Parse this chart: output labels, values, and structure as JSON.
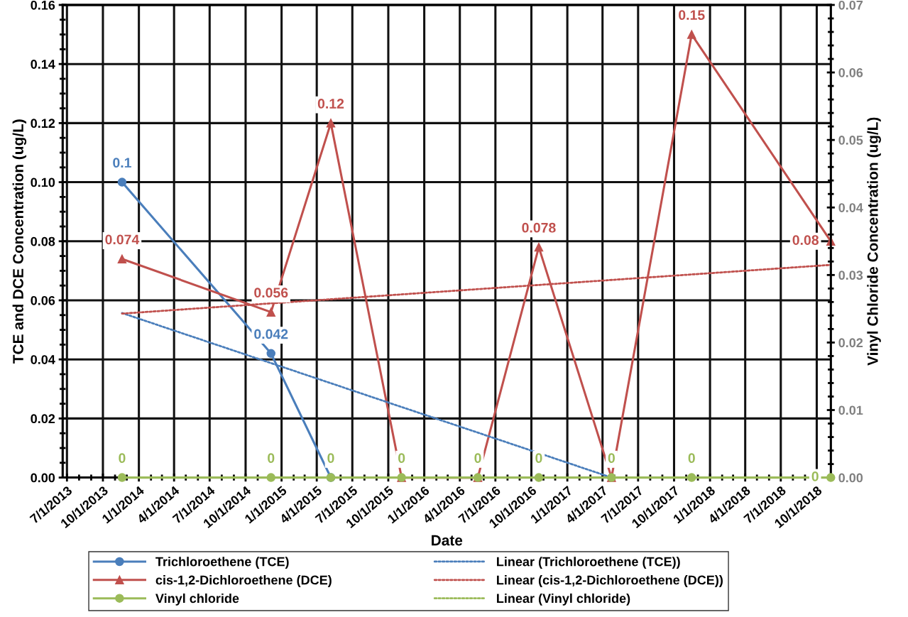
{
  "chart_data": {
    "type": "line",
    "xlabel": "Date",
    "ylabel": "TCE and DCE Concentration (ug/L)",
    "y2label": "Vinyl Chloride Concentration (ug/L)",
    "x": [
      "2013-11-19",
      "2014-12-05",
      "2015-05-07",
      "2015-11-04",
      "2016-05-17",
      "2016-10-20",
      "2017-04-24",
      "2017-11-15",
      "2018-11-06"
    ],
    "series": [
      {
        "name": "Trichloroethene (TCE)",
        "color": "#4a7ebb",
        "marker": "circle",
        "x": [
          "2013-11-19",
          "2014-12-05",
          "2015-05-07"
        ],
        "values": [
          0.1,
          0.042,
          0
        ],
        "value_labels": [
          "0.1",
          "0.042",
          null
        ]
      },
      {
        "name": "cis-1,2-Dichloroethene (DCE)",
        "color": "#c0504d",
        "marker": "triangle",
        "values": [
          0.074,
          0.056,
          0.12,
          0,
          0,
          0.078,
          0,
          0.15,
          0.08
        ],
        "value_labels": [
          "0.074",
          "0.056",
          "0.12",
          null,
          null,
          "0.078",
          null,
          "0.15",
          "0.08"
        ]
      },
      {
        "name": "Vinyl chloride",
        "color": "#9bbb59",
        "marker": "circle",
        "axis": "y2",
        "values": [
          0,
          0,
          0,
          0,
          0,
          0,
          0,
          0,
          0
        ],
        "value_labels": [
          "0",
          "0",
          "0",
          "0",
          "0",
          "0",
          "0",
          "0",
          "0"
        ]
      },
      {
        "name": "Linear (Trichloroethene (TCE))",
        "color": "#4a7ebb",
        "line_style": "dotted",
        "marker": "none",
        "x": [
          "2013-11-19",
          "2017-04-24"
        ],
        "values": [
          0.0557,
          0
        ]
      },
      {
        "name": "Linear (cis-1,2-Dichloroethene (DCE))",
        "color": "#c0504d",
        "line_style": "dotted",
        "marker": "none",
        "x": [
          "2013-11-19",
          "2018-11-06"
        ],
        "values": [
          0.0555,
          0.072
        ]
      },
      {
        "name": "Linear (Vinyl chloride)",
        "color": "#9bbb59",
        "line_style": "dotted",
        "marker": "none",
        "axis": "y2",
        "values": [
          null,
          null,
          null,
          null,
          null,
          null,
          null,
          null,
          null
        ]
      }
    ],
    "xlim": [
      "2013-06-20",
      "2018-11-06"
    ],
    "xticks": [
      {
        "value": "2013-07-01",
        "label": "7/1/2013"
      },
      {
        "value": "2013-10-01",
        "label": "10/1/2013"
      },
      {
        "value": "2014-01-01",
        "label": "1/1/2014"
      },
      {
        "value": "2014-04-01",
        "label": "4/1/2014"
      },
      {
        "value": "2014-07-01",
        "label": "7/1/2014"
      },
      {
        "value": "2014-10-01",
        "label": "10/1/2014"
      },
      {
        "value": "2015-01-01",
        "label": "1/1/2015"
      },
      {
        "value": "2015-04-01",
        "label": "4/1/2015"
      },
      {
        "value": "2015-07-01",
        "label": "7/1/2015"
      },
      {
        "value": "2015-10-01",
        "label": "10/1/2015"
      },
      {
        "value": "2016-01-01",
        "label": "1/1/2016"
      },
      {
        "value": "2016-04-01",
        "label": "4/1/2016"
      },
      {
        "value": "2016-07-01",
        "label": "7/1/2016"
      },
      {
        "value": "2016-10-01",
        "label": "10/1/2016"
      },
      {
        "value": "2017-01-01",
        "label": "1/1/2017"
      },
      {
        "value": "2017-04-01",
        "label": "4/1/2017"
      },
      {
        "value": "2017-07-01",
        "label": "7/1/2017"
      },
      {
        "value": "2017-10-01",
        "label": "10/1/2017"
      },
      {
        "value": "2018-01-01",
        "label": "1/1/2018"
      },
      {
        "value": "2018-04-01",
        "label": "4/1/2018"
      },
      {
        "value": "2018-07-01",
        "label": "7/1/2018"
      },
      {
        "value": "2018-10-01",
        "label": "10/1/2018"
      }
    ],
    "ylim": [
      0,
      0.16
    ],
    "yticks": [
      {
        "value": 0,
        "label": "0.00"
      },
      {
        "value": 0.02,
        "label": "0.02"
      },
      {
        "value": 0.04,
        "label": "0.04"
      },
      {
        "value": 0.06,
        "label": "0.06"
      },
      {
        "value": 0.08,
        "label": "0.08"
      },
      {
        "value": 0.1,
        "label": "0.10"
      },
      {
        "value": 0.12,
        "label": "0.12"
      },
      {
        "value": 0.14,
        "label": "0.14"
      },
      {
        "value": 0.16,
        "label": "0.16"
      }
    ],
    "y2lim": [
      0,
      0.07
    ],
    "y2ticks": [
      {
        "value": 0,
        "label": "0.00"
      },
      {
        "value": 0.01,
        "label": "0.01"
      },
      {
        "value": 0.02,
        "label": "0.02"
      },
      {
        "value": 0.03,
        "label": "0.03"
      },
      {
        "value": 0.04,
        "label": "0.04"
      },
      {
        "value": 0.05,
        "label": "0.05"
      },
      {
        "value": 0.06,
        "label": "0.06"
      },
      {
        "value": 0.07,
        "label": "0.07"
      }
    ],
    "grid": true,
    "legend": "bottom"
  }
}
